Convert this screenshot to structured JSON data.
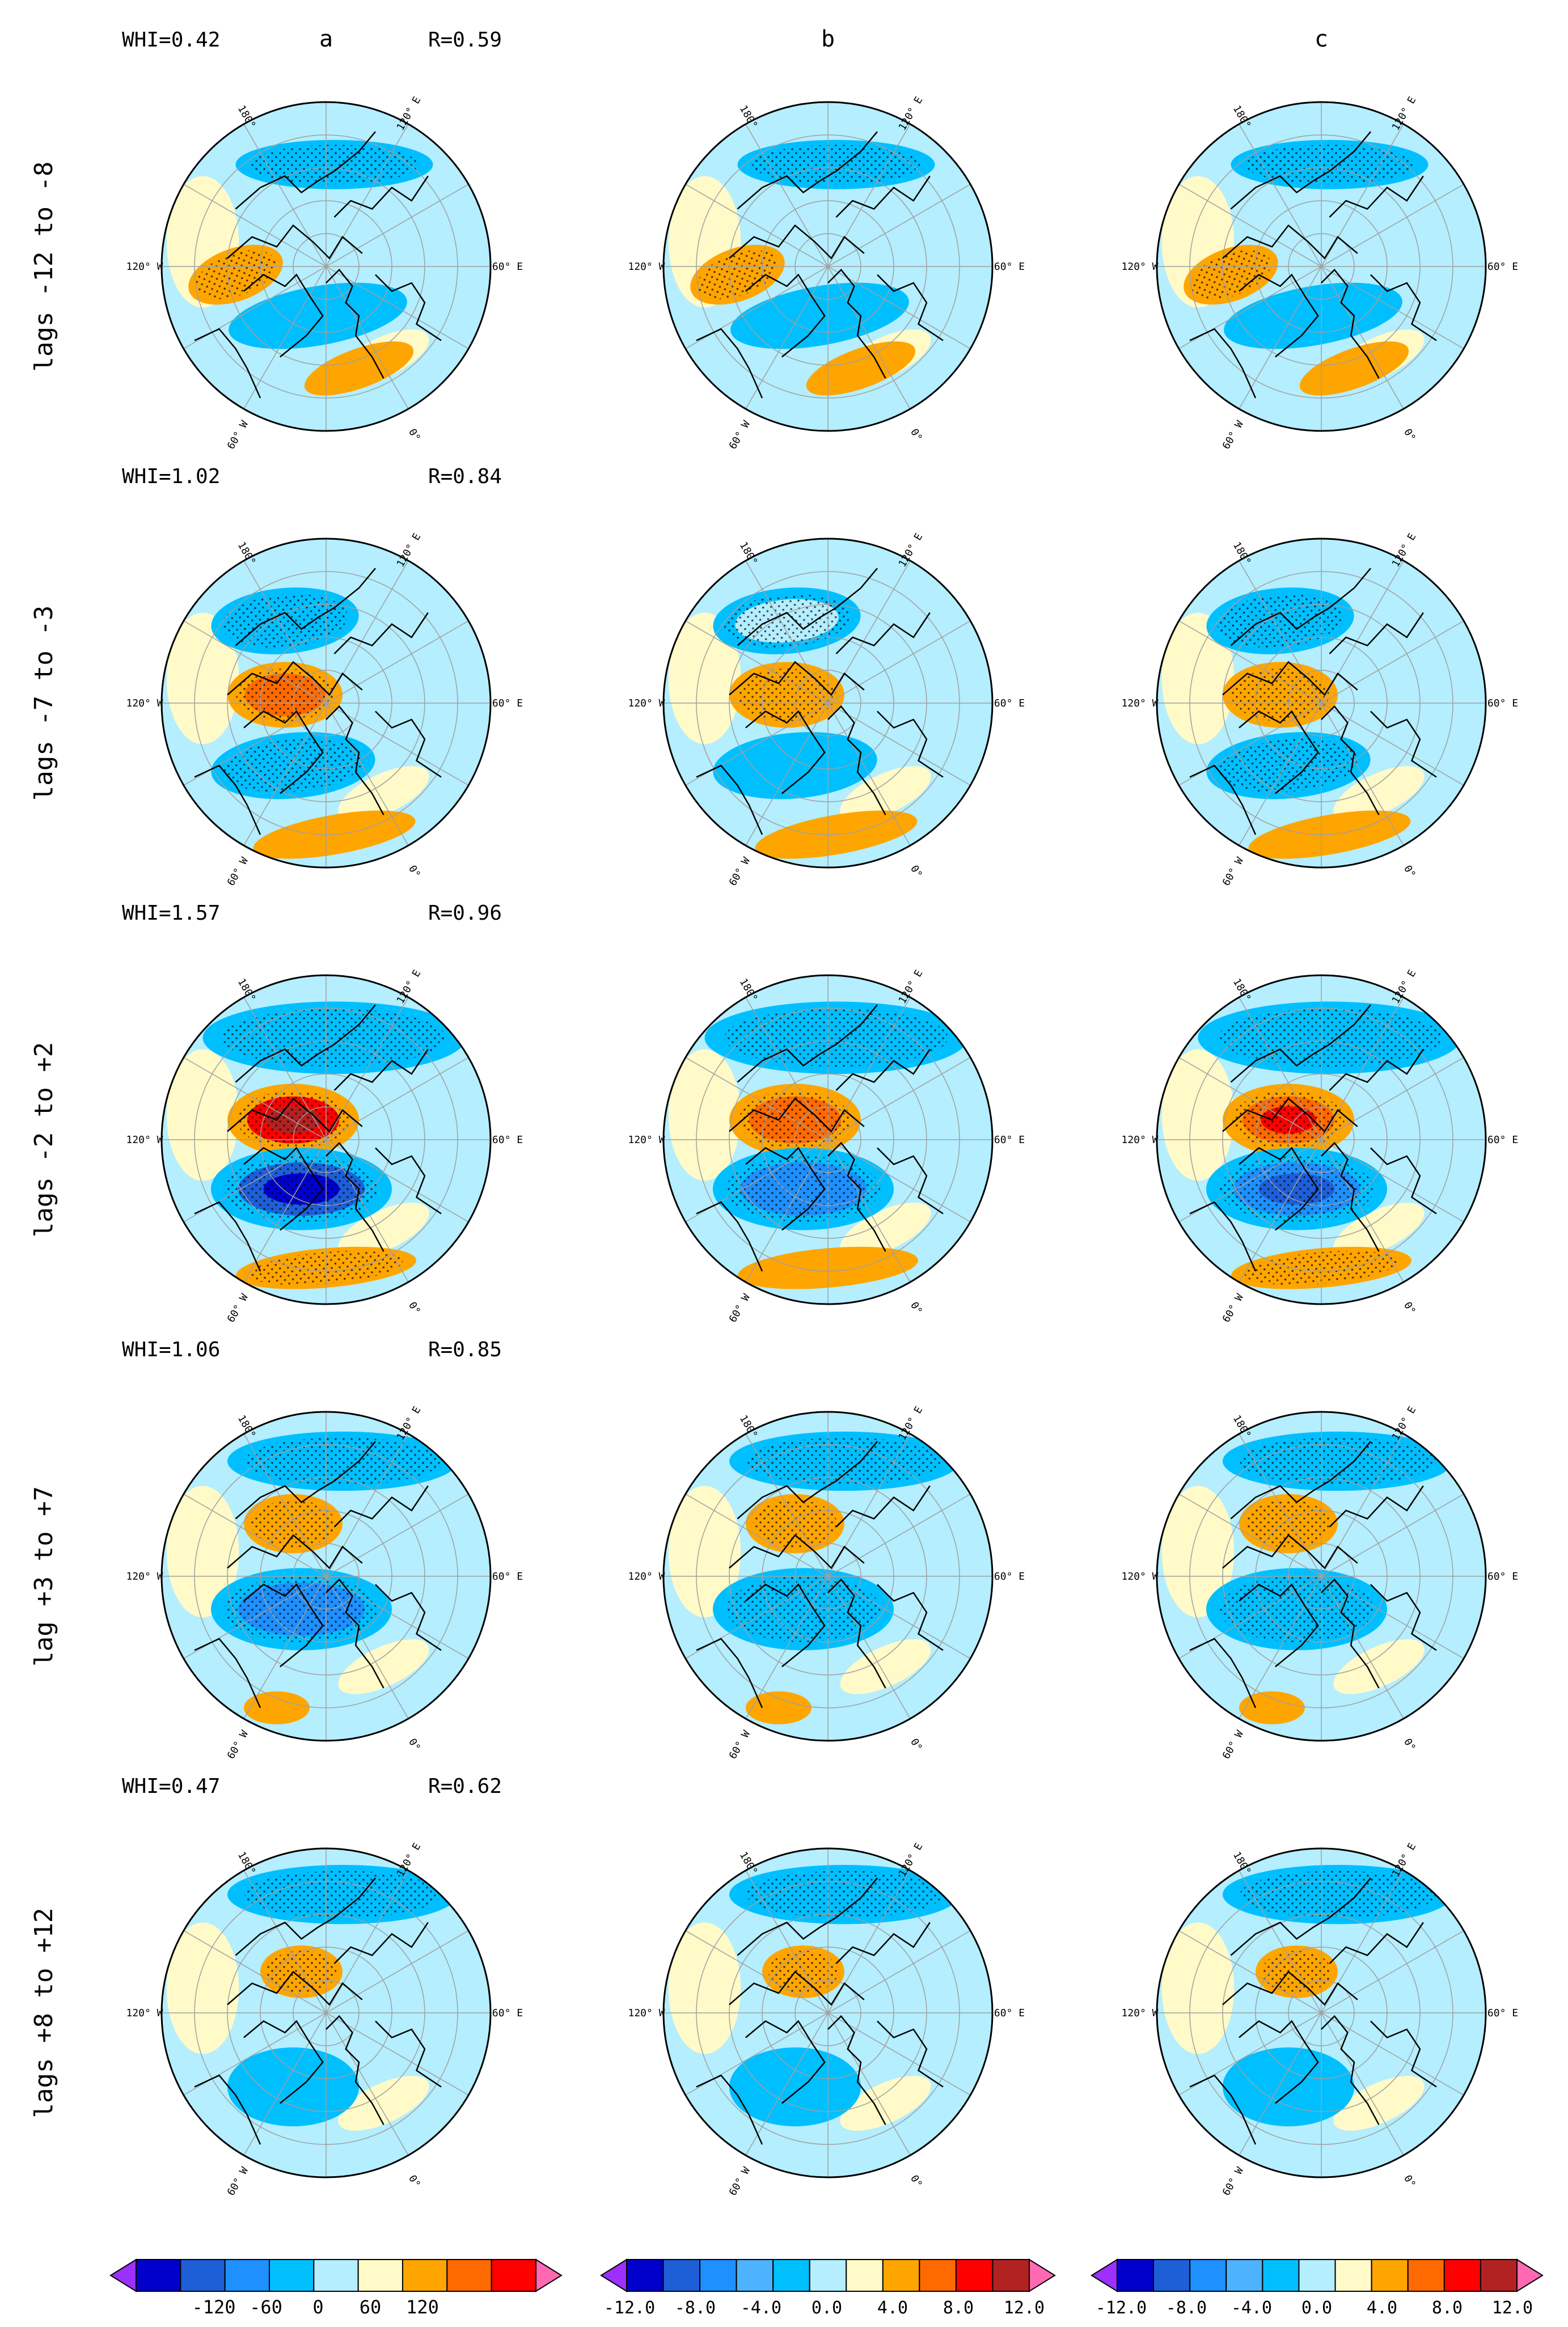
{
  "figure": {
    "column_labels": [
      "a",
      "b",
      "c"
    ],
    "rows": [
      {
        "label": "lags -12 to -8",
        "whi": "WHI=0.42",
        "r": "R=0.59"
      },
      {
        "label": "lags -7 to -3",
        "whi": "WHI=1.02",
        "r": "R=0.84"
      },
      {
        "label": "lags -2 to +2",
        "whi": "WHI=1.57",
        "r": "R=0.96"
      },
      {
        "label": "lag +3 to +7",
        "whi": "WHI=1.06",
        "r": "R=0.85"
      },
      {
        "label": "lags +8 to +12",
        "whi": "WHI=0.47",
        "r": "R=0.62"
      }
    ],
    "map_labels": {
      "top": "180°",
      "left": "120° W",
      "right": "60° E",
      "bottom_left": "60° W",
      "bottom_right": "0°",
      "top_right": "120° E"
    }
  },
  "colorbars": [
    {
      "ticks": [
        "-120",
        "-60",
        "0",
        "60",
        "120"
      ]
    },
    {
      "ticks": [
        "-12.0",
        "-8.0",
        "-4.0",
        "0.0",
        "4.0",
        "8.0",
        "12.0"
      ]
    },
    {
      "ticks": [
        "-12.0",
        "-8.0",
        "-4.0",
        "0.0",
        "4.0",
        "8.0",
        "12.0"
      ]
    }
  ],
  "palette": [
    "#9b30ff",
    "#0000cd",
    "#1e5fd8",
    "#1e90ff",
    "#00bfff",
    "#b4eeff",
    "#fffac8",
    "#ffa500",
    "#ff6a00",
    "#ff0000",
    "#b22222",
    "#ff69b4"
  ],
  "anomaly_fields": {
    "row_strength": [
      0.42,
      1.02,
      1.57,
      1.06,
      0.47
    ],
    "column_scale": [
      1.0,
      0.55,
      0.65
    ]
  }
}
